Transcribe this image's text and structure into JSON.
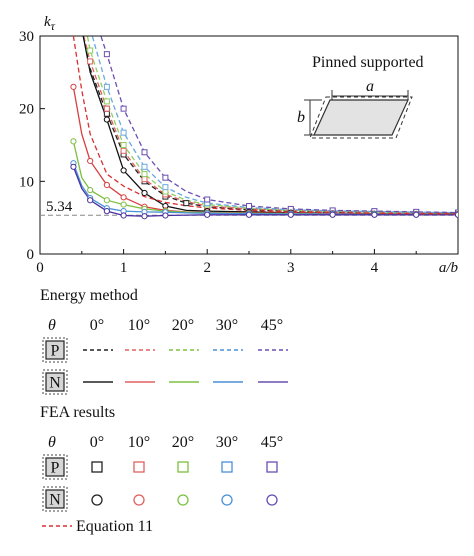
{
  "chart_data": {
    "type": "line",
    "ylabel_symbol": "k",
    "ylabel_subscript": "τ",
    "xlabel": "a/b",
    "xlim": [
      0,
      5
    ],
    "ylim": [
      0,
      30
    ],
    "xticks": [
      "0",
      "1",
      "2",
      "3",
      "4"
    ],
    "yticks": [
      "0",
      "10",
      "20",
      "30"
    ],
    "reference_line": {
      "value": 5.34,
      "label": "5.34"
    },
    "inset": {
      "title": "Pinned supported",
      "dim_a": "a",
      "dim_b": "b"
    },
    "series": [
      {
        "name": "Energy method P 0°",
        "color": "#222222",
        "dash": true,
        "x": [
          0.5,
          0.6,
          0.8,
          1.0,
          1.25,
          1.5,
          1.75,
          2.0,
          2.5,
          3.0,
          3.5,
          4.0,
          4.5,
          5.0
        ],
        "y": [
          31,
          25.5,
          19.3,
          13.7,
          10.0,
          8.0,
          7.0,
          6.5,
          6.1,
          5.9,
          5.8,
          5.75,
          5.7,
          5.65
        ]
      },
      {
        "name": "Energy method P 10°",
        "color": "#e06060",
        "dash": true,
        "x": [
          0.5,
          0.6,
          0.8,
          1.0,
          1.25,
          1.5,
          1.75,
          2.0,
          2.5,
          3.0,
          3.5,
          4.0,
          4.5,
          5.0
        ],
        "y": [
          31,
          26.5,
          20.0,
          14.2,
          10.3,
          8.2,
          7.2,
          6.6,
          6.2,
          6.0,
          5.85,
          5.8,
          5.7,
          5.65
        ]
      },
      {
        "name": "Energy method P 20°",
        "color": "#8fcf60",
        "dash": true,
        "x": [
          0.55,
          0.6,
          0.8,
          1.0,
          1.25,
          1.5,
          1.75,
          2.0,
          2.5,
          3.0,
          3.5,
          4.0,
          4.5,
          5.0
        ],
        "y": [
          31,
          28.0,
          21.0,
          15.0,
          11.0,
          8.6,
          7.4,
          6.8,
          6.3,
          6.0,
          5.9,
          5.8,
          5.7,
          5.65
        ]
      },
      {
        "name": "Energy method P 30°",
        "color": "#6aa8e0",
        "dash": true,
        "x": [
          0.6,
          0.7,
          0.8,
          1.0,
          1.25,
          1.5,
          1.75,
          2.0,
          2.5,
          3.0,
          3.5,
          4.0,
          4.5,
          5.0
        ],
        "y": [
          31,
          27.0,
          23.0,
          16.7,
          12.0,
          9.2,
          7.8,
          7.0,
          6.4,
          6.1,
          5.95,
          5.85,
          5.75,
          5.7
        ]
      },
      {
        "name": "Energy method P 45°",
        "color": "#6a4fb0",
        "dash": true,
        "x": [
          0.7,
          0.8,
          1.0,
          1.25,
          1.5,
          1.75,
          2.0,
          2.5,
          3.0,
          3.5,
          4.0,
          4.5,
          5.0
        ],
        "y": [
          31,
          27.5,
          20.0,
          14.0,
          10.5,
          8.6,
          7.5,
          6.6,
          6.2,
          6.0,
          5.9,
          5.8,
          5.7
        ]
      },
      {
        "name": "Energy method N 0°",
        "color": "#111111",
        "dash": false,
        "x": [
          0.5,
          0.6,
          0.8,
          1.0,
          1.25,
          1.5,
          1.75,
          2.0,
          2.5,
          3.0,
          3.5,
          4.0,
          4.5,
          5.0
        ],
        "y": [
          31,
          25.0,
          18.5,
          11.5,
          8.4,
          6.6,
          6.0,
          5.9,
          5.8,
          5.7,
          5.6,
          5.55,
          5.5,
          5.5
        ]
      },
      {
        "name": "Energy method N 10°",
        "color": "#d84040",
        "dash": false,
        "x": [
          0.4,
          0.5,
          0.6,
          0.8,
          1.0,
          1.25,
          1.5,
          1.75,
          2.0,
          2.5,
          3.0,
          3.5,
          4.0,
          4.5,
          5.0
        ],
        "y": [
          23.0,
          16.5,
          12.8,
          9.5,
          7.8,
          6.5,
          6.0,
          5.8,
          5.7,
          5.65,
          5.6,
          5.55,
          5.5,
          5.5,
          5.45
        ]
      },
      {
        "name": "Energy method N 20°",
        "color": "#7cc040",
        "dash": false,
        "x": [
          0.4,
          0.5,
          0.6,
          0.8,
          1.0,
          1.25,
          1.5,
          1.75,
          2.0,
          2.5,
          3.0,
          3.5,
          4.0,
          4.5,
          5.0
        ],
        "y": [
          15.5,
          10.5,
          8.8,
          7.4,
          6.8,
          6.2,
          5.9,
          5.75,
          5.65,
          5.6,
          5.55,
          5.5,
          5.5,
          5.45,
          5.45
        ]
      },
      {
        "name": "Energy method N 30°",
        "color": "#4a90d8",
        "dash": false,
        "x": [
          0.4,
          0.5,
          0.6,
          0.8,
          1.0,
          1.25,
          1.5,
          1.75,
          2.0,
          2.5,
          3.0,
          3.5,
          4.0,
          4.5,
          5.0
        ],
        "y": [
          12.5,
          9.4,
          7.7,
          6.3,
          5.9,
          5.8,
          5.75,
          5.65,
          5.6,
          5.55,
          5.5,
          5.5,
          5.45,
          5.45,
          5.4
        ]
      },
      {
        "name": "Energy method N 45°",
        "color": "#4a2fa0",
        "dash": false,
        "x": [
          0.4,
          0.5,
          0.6,
          0.8,
          1.0,
          1.25,
          1.5,
          1.75,
          2.0,
          2.5,
          3.0,
          3.5,
          4.0,
          4.5,
          5.0
        ],
        "y": [
          12.0,
          9.0,
          7.4,
          5.9,
          5.3,
          5.2,
          5.3,
          5.35,
          5.4,
          5.4,
          5.4,
          5.4,
          5.4,
          5.4,
          5.4
        ]
      },
      {
        "name": "Equation 11",
        "color": "#d83030",
        "dash": true,
        "x": [
          0.4,
          0.5,
          0.6,
          0.8,
          1.0,
          1.25,
          1.5,
          1.75,
          2.0,
          2.5,
          3.0,
          3.5,
          4.0,
          4.5,
          5.0
        ],
        "y": [
          30.0,
          22.5,
          16.5,
          11.0,
          9.34,
          7.9,
          7.1,
          6.65,
          6.34,
          5.98,
          5.78,
          5.67,
          5.59,
          5.54,
          5.5
        ]
      }
    ],
    "markers": [
      {
        "type": "square",
        "color": "#222222",
        "x": [
          0.8,
          1.0,
          1.25,
          1.5,
          1.75,
          2.0,
          2.5,
          3.0,
          3.5,
          4.0,
          4.5,
          5.0
        ],
        "y": [
          19.3,
          13.7,
          10.0,
          7.9,
          7.0,
          6.5,
          6.1,
          5.9,
          5.8,
          5.75,
          5.7,
          5.65
        ]
      },
      {
        "type": "square",
        "color": "#e06060",
        "x": [
          0.6,
          0.8,
          1.0,
          1.25,
          1.5,
          2.0,
          2.5,
          3.0,
          3.5,
          4.0,
          4.5,
          5.0
        ],
        "y": [
          26.5,
          20.0,
          14.2,
          10.3,
          8.2,
          6.6,
          6.2,
          6.0,
          5.85,
          5.8,
          5.7,
          5.65
        ]
      },
      {
        "type": "square",
        "color": "#8fcf60",
        "x": [
          0.6,
          0.8,
          1.0,
          1.25,
          1.5,
          2.0,
          2.5,
          3.0,
          3.5,
          4.0,
          4.5,
          5.0
        ],
        "y": [
          28.0,
          21.0,
          15.0,
          11.0,
          8.6,
          6.8,
          6.3,
          6.0,
          5.9,
          5.8,
          5.7,
          5.65
        ]
      },
      {
        "type": "square",
        "color": "#6aa8e0",
        "x": [
          0.8,
          1.0,
          1.25,
          1.5,
          2.0,
          2.5,
          3.0,
          3.5,
          4.0,
          4.5,
          5.0
        ],
        "y": [
          23.0,
          16.7,
          12.0,
          9.2,
          7.0,
          6.4,
          6.1,
          5.95,
          5.85,
          5.75,
          5.7
        ]
      },
      {
        "type": "square",
        "color": "#6a4fb0",
        "x": [
          0.8,
          1.0,
          1.25,
          1.5,
          2.0,
          2.5,
          3.0,
          3.5,
          4.0,
          4.5,
          5.0
        ],
        "y": [
          27.5,
          20.0,
          14.0,
          10.5,
          7.5,
          6.6,
          6.2,
          6.0,
          5.9,
          5.8,
          5.7
        ]
      },
      {
        "type": "circle",
        "color": "#111111",
        "x": [
          0.8,
          1.0,
          1.25,
          1.5,
          2.0,
          2.5,
          3.0,
          3.5,
          4.0,
          4.5,
          5.0
        ],
        "y": [
          18.5,
          11.5,
          8.4,
          6.6,
          5.9,
          5.8,
          5.7,
          5.6,
          5.55,
          5.5,
          5.5
        ]
      },
      {
        "type": "circle",
        "color": "#d84040",
        "x": [
          0.4,
          0.6,
          0.8,
          1.0,
          1.25,
          1.5,
          2.0,
          2.5,
          3.0,
          3.5,
          4.0,
          4.5,
          5.0
        ],
        "y": [
          23.0,
          12.8,
          9.5,
          7.8,
          6.5,
          6.0,
          5.7,
          5.65,
          5.6,
          5.55,
          5.5,
          5.5,
          5.45
        ]
      },
      {
        "type": "circle",
        "color": "#7cc040",
        "x": [
          0.4,
          0.6,
          0.8,
          1.0,
          1.25,
          1.5,
          2.0,
          2.5,
          3.0,
          3.5,
          4.0,
          4.5,
          5.0
        ],
        "y": [
          15.5,
          8.8,
          7.4,
          6.8,
          6.2,
          5.9,
          5.65,
          5.6,
          5.55,
          5.5,
          5.5,
          5.45,
          5.45
        ]
      },
      {
        "type": "circle",
        "color": "#4a90d8",
        "x": [
          0.4,
          0.6,
          0.8,
          1.0,
          1.25,
          1.5,
          2.0,
          2.5,
          3.0,
          3.5,
          4.0,
          4.5,
          5.0
        ],
        "y": [
          12.5,
          7.7,
          6.3,
          5.9,
          5.8,
          5.75,
          5.6,
          5.55,
          5.5,
          5.5,
          5.45,
          5.45,
          5.4
        ]
      },
      {
        "type": "circle",
        "color": "#4a2fa0",
        "x": [
          0.4,
          0.6,
          0.8,
          1.0,
          1.25,
          1.5,
          2.0,
          2.5,
          3.0,
          3.5,
          4.0,
          4.5,
          5.0
        ],
        "y": [
          12.0,
          7.4,
          5.9,
          5.3,
          5.2,
          5.3,
          5.4,
          5.4,
          5.4,
          5.4,
          5.4,
          5.4,
          5.4
        ]
      }
    ]
  },
  "legend": {
    "energy_title": "Energy method",
    "fea_title": "FEA results",
    "theta": "θ",
    "angles": [
      "0°",
      "10°",
      "20°",
      "30°",
      "45°"
    ],
    "colors": [
      "#222222",
      "#e06060",
      "#7cc040",
      "#4a90d8",
      "#6a4fb0"
    ],
    "badge_p": "P",
    "badge_n": "N",
    "equation_label": "Equation 11"
  }
}
